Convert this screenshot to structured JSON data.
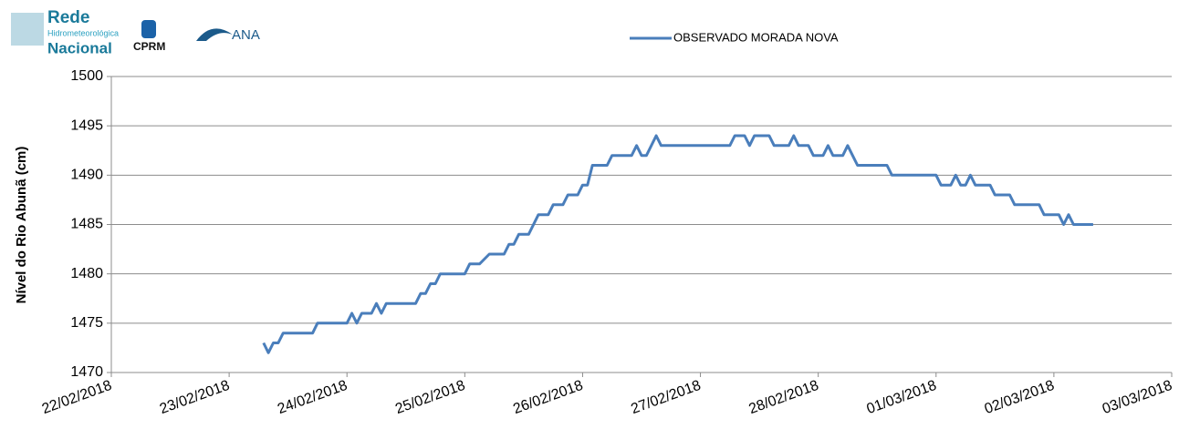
{
  "logos": {
    "rede": "Rede",
    "hidro": "Hidrometeorológica",
    "nacional": "Nacional",
    "cprm": "CPRM",
    "ana": "ANA"
  },
  "chart_data": {
    "type": "line",
    "ylabel": "Nível do Rio Abunã (cm)",
    "series": [
      {
        "name": "OBSERVADO MORADA NOVA",
        "color": "#4a7ebb",
        "x": [
          "2018-02-23T07:00",
          "2018-02-23T08:00",
          "2018-02-23T09:00",
          "2018-02-23T10:00",
          "2018-02-23T11:00",
          "2018-02-23T17:00",
          "2018-02-23T18:00",
          "2018-02-24T00:00",
          "2018-02-24T01:00",
          "2018-02-24T02:00",
          "2018-02-24T03:00",
          "2018-02-24T05:00",
          "2018-02-24T06:00",
          "2018-02-24T07:00",
          "2018-02-24T08:00",
          "2018-02-24T14:00",
          "2018-02-24T15:00",
          "2018-02-24T16:00",
          "2018-02-24T17:00",
          "2018-02-24T18:00",
          "2018-02-24T19:00",
          "2018-02-25T00:00",
          "2018-02-25T01:00",
          "2018-02-25T03:00",
          "2018-02-25T05:00",
          "2018-02-25T08:00",
          "2018-02-25T09:00",
          "2018-02-25T10:00",
          "2018-02-25T11:00",
          "2018-02-25T13:00",
          "2018-02-25T15:00",
          "2018-02-25T17:00",
          "2018-02-25T18:00",
          "2018-02-25T20:00",
          "2018-02-25T21:00",
          "2018-02-25T23:00",
          "2018-02-26T00:00",
          "2018-02-26T01:00",
          "2018-02-26T02:00",
          "2018-02-26T05:00",
          "2018-02-26T06:00",
          "2018-02-26T10:00",
          "2018-02-26T11:00",
          "2018-02-26T12:00",
          "2018-02-26T13:00",
          "2018-02-26T15:00",
          "2018-02-26T16:00",
          "2018-02-27T06:00",
          "2018-02-27T07:00",
          "2018-02-27T09:00",
          "2018-02-27T10:00",
          "2018-02-27T11:00",
          "2018-02-27T14:00",
          "2018-02-27T15:00",
          "2018-02-27T18:00",
          "2018-02-27T19:00",
          "2018-02-27T20:00",
          "2018-02-27T22:00",
          "2018-02-27T23:00",
          "2018-02-28T01:00",
          "2018-02-28T02:00",
          "2018-02-28T03:00",
          "2018-02-28T05:00",
          "2018-02-28T06:00",
          "2018-02-28T07:00",
          "2018-02-28T08:00",
          "2018-02-28T14:00",
          "2018-02-28T15:00",
          "2018-03-01T00:00",
          "2018-03-01T01:00",
          "2018-03-01T03:00",
          "2018-03-01T04:00",
          "2018-03-01T05:00",
          "2018-03-01T06:00",
          "2018-03-01T07:00",
          "2018-03-01T08:00",
          "2018-03-01T11:00",
          "2018-03-01T12:00",
          "2018-03-01T15:00",
          "2018-03-01T16:00",
          "2018-03-01T21:00",
          "2018-03-01T22:00",
          "2018-03-02T01:00",
          "2018-03-02T02:00",
          "2018-03-02T03:00",
          "2018-03-02T04:00",
          "2018-03-02T08:00"
        ],
        "values": [
          1473,
          1472,
          1473,
          1473,
          1474,
          1474,
          1475,
          1475,
          1476,
          1475,
          1476,
          1476,
          1477,
          1476,
          1477,
          1477,
          1478,
          1478,
          1479,
          1479,
          1480,
          1480,
          1481,
          1481,
          1482,
          1482,
          1483,
          1483,
          1484,
          1484,
          1486,
          1486,
          1487,
          1487,
          1488,
          1488,
          1489,
          1489,
          1491,
          1491,
          1492,
          1492,
          1493,
          1492,
          1492,
          1494,
          1493,
          1493,
          1494,
          1494,
          1493,
          1494,
          1494,
          1493,
          1493,
          1494,
          1493,
          1493,
          1492,
          1492,
          1493,
          1492,
          1492,
          1493,
          1492,
          1491,
          1491,
          1490,
          1490,
          1489,
          1489,
          1490,
          1489,
          1489,
          1490,
          1489,
          1489,
          1488,
          1488,
          1487,
          1487,
          1486,
          1486,
          1485,
          1486,
          1485,
          1485
        ]
      }
    ],
    "xlim": [
      "2018-02-22T00:00",
      "2018-03-03T00:00"
    ],
    "xticks": [
      {
        "value": "2018-02-22T00:00",
        "label": "22/02/2018"
      },
      {
        "value": "2018-02-23T00:00",
        "label": "23/02/2018"
      },
      {
        "value": "2018-02-24T00:00",
        "label": "24/02/2018"
      },
      {
        "value": "2018-02-25T00:00",
        "label": "25/02/2018"
      },
      {
        "value": "2018-02-26T00:00",
        "label": "26/02/2018"
      },
      {
        "value": "2018-02-27T00:00",
        "label": "27/02/2018"
      },
      {
        "value": "2018-02-28T00:00",
        "label": "28/02/2018"
      },
      {
        "value": "2018-03-01T00:00",
        "label": "01/03/2018"
      },
      {
        "value": "2018-03-02T00:00",
        "label": "02/03/2018"
      },
      {
        "value": "2018-03-03T00:00",
        "label": "03/03/2018"
      }
    ],
    "ylim": [
      1470,
      1500
    ],
    "yticks": [
      1470,
      1475,
      1480,
      1485,
      1490,
      1495,
      1500
    ],
    "grid": true,
    "legend": "top"
  }
}
